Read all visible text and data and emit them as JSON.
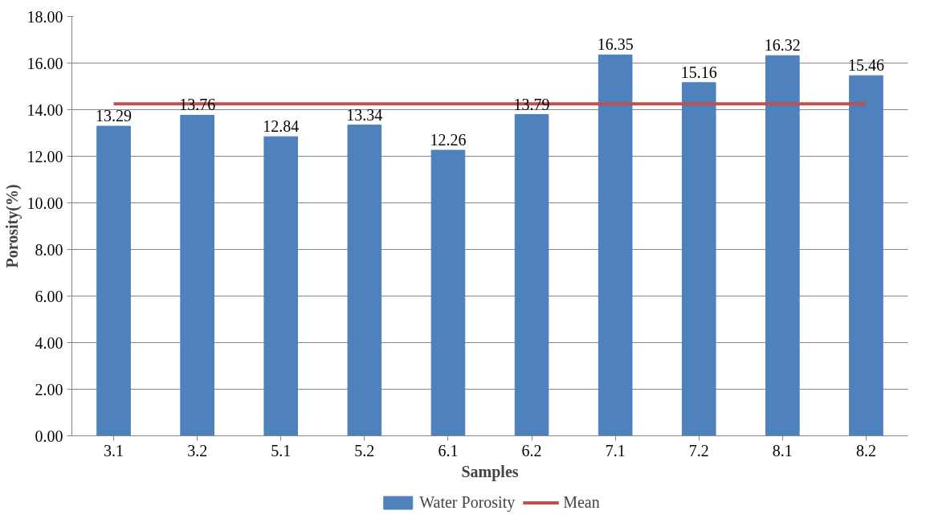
{
  "chart_data": {
    "type": "bar",
    "xlabel": "Samples",
    "ylabel": "Porosity(%)",
    "categories": [
      "3.1",
      "3.2",
      "5.1",
      "5.2",
      "6.1",
      "6.2",
      "7.1",
      "7.2",
      "8.1",
      "8.2"
    ],
    "series": [
      {
        "name": "Water Porosity",
        "color": "#4f81bd",
        "values": [
          13.29,
          13.76,
          12.84,
          13.34,
          12.26,
          13.79,
          16.35,
          15.16,
          16.32,
          15.46
        ],
        "value_labels": [
          "13.29",
          "13.76",
          "12.84",
          "13.34",
          "12.26",
          "13.79",
          "16.35",
          "15.16",
          "16.32",
          "15.46"
        ]
      },
      {
        "name": "Mean",
        "type": "line",
        "color": "#c0504d",
        "values": [
          14.25,
          14.25,
          14.25,
          14.25,
          14.25,
          14.25,
          14.25,
          14.25,
          14.25,
          14.25
        ]
      }
    ],
    "ylim": [
      0,
      18
    ],
    "yticks": [
      {
        "value": 0,
        "label": "0.00"
      },
      {
        "value": 2,
        "label": "2.00"
      },
      {
        "value": 4,
        "label": "4.00"
      },
      {
        "value": 6,
        "label": "6.00"
      },
      {
        "value": 8,
        "label": "8.00"
      },
      {
        "value": 10,
        "label": "10.00"
      },
      {
        "value": 12,
        "label": "12.00"
      },
      {
        "value": 14,
        "label": "14.00"
      },
      {
        "value": 16,
        "label": "16.00"
      },
      {
        "value": 18,
        "label": "18.00"
      }
    ],
    "grid": "y",
    "legend": "bottom"
  }
}
